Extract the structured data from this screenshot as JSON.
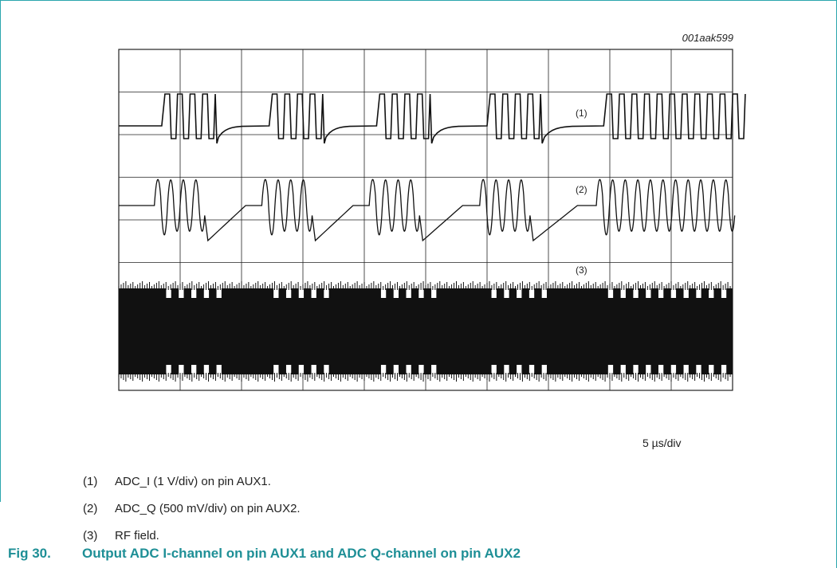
{
  "figure": {
    "code": "001aak599",
    "timebase": "5 µs/div",
    "trace_labels": [
      "(1)",
      "(2)",
      "(3)"
    ],
    "notes": [
      {
        "num": "(1)",
        "text": "ADC_I (1 V/div) on pin AUX1."
      },
      {
        "num": "(2)",
        "text": "ADC_Q (500 mV/div) on pin AUX2."
      },
      {
        "num": "(3)",
        "text": "RF field."
      }
    ],
    "caption_number": "Fig 30.",
    "caption_text": "Output ADC I-channel on pin AUX1 and ADC Q-channel on pin AUX2"
  },
  "colors": {
    "accent": "#1e8f96",
    "frame": "#2aa6ad",
    "trace": "#111111"
  }
}
